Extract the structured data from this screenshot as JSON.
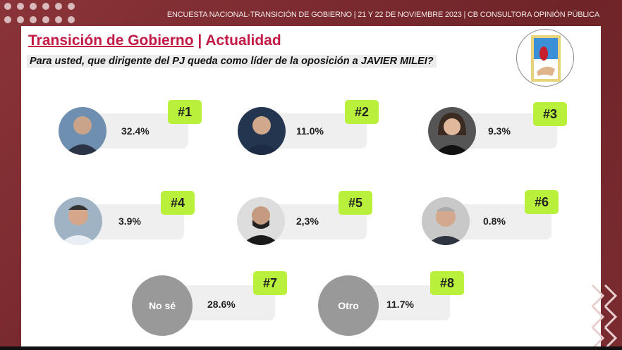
{
  "header": {
    "top_line": "ENCUESTA NACIONAL-TRANSICIÓN DE GOBIERNO  | 21 Y 22 DE NOVIEMBRE 2023 | CB CONSULTORA OPINIÓN PÚBLICA",
    "title_main": "Transición de Gobierno",
    "title_sep": " | ",
    "title_sub": "Actualidad",
    "question": "Para usted, que dirigente del PJ queda como líder de la oposición a JAVIER MILEI?"
  },
  "colors": {
    "accent": "#c21a44",
    "badge": "#b8f03c",
    "frame": "#7a2a2e"
  },
  "results": [
    {
      "rank": "#1",
      "value": "32.4%",
      "percent": 32.4
    },
    {
      "rank": "#2",
      "value": "11.0%",
      "percent": 11.0
    },
    {
      "rank": "#3",
      "value": "9.3%",
      "percent": 9.3
    },
    {
      "rank": "#4",
      "value": "3.9%",
      "percent": 3.9
    },
    {
      "rank": "#5",
      "value": "2,3%",
      "percent": 2.3
    },
    {
      "rank": "#6",
      "value": "0.8%",
      "percent": 0.8
    },
    {
      "rank": "#7",
      "label": "No sé",
      "value": "28.6%",
      "percent": 28.6
    },
    {
      "rank": "#8",
      "label": "Otro",
      "value": "11.7%",
      "percent": 11.7
    }
  ]
}
